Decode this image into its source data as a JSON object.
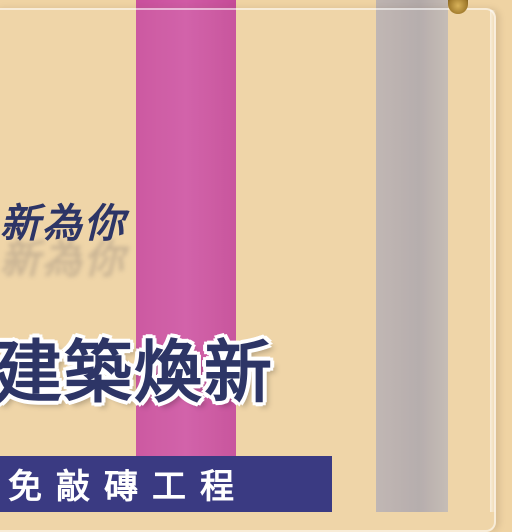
{
  "sign": {
    "tagline": "新為你",
    "headline": "建築煥新",
    "banner": "免敲磚工程"
  },
  "colors": {
    "wall": "#efd3a3",
    "pink_stripe": "#c94f9c",
    "grey_stripe": "#b2a9a8",
    "text_navy": "#2d3566",
    "banner_bg": "#3a3a82"
  }
}
